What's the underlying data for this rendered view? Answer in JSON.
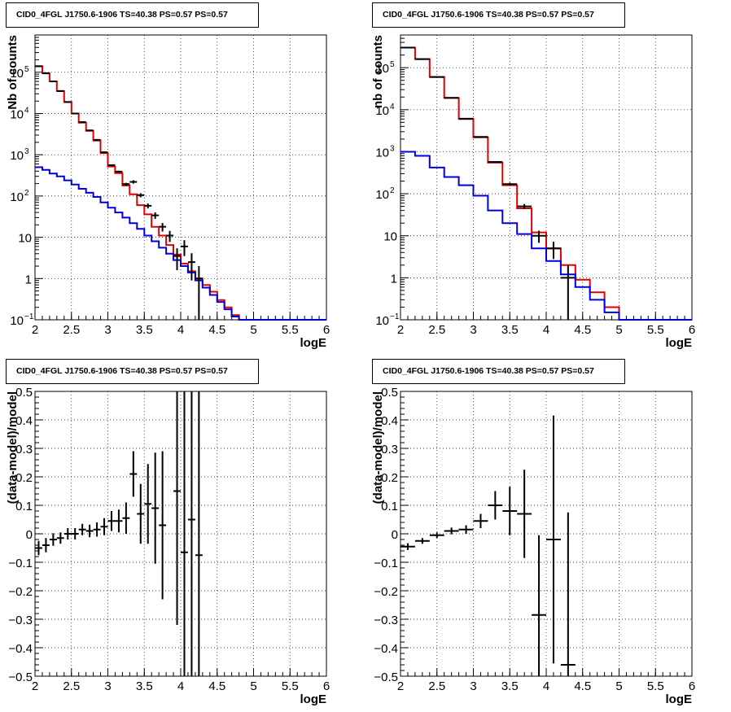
{
  "chart_data": [
    {
      "type": "line",
      "title": "CID0_4FGL J1750.6-1906 TS=40.38 PS=0.57 PS=0.57",
      "xlabel": "logE",
      "ylabel": "Nb of counts",
      "yscale": "log",
      "xlim": [
        2,
        6
      ],
      "ylim": [
        0.1,
        800000
      ],
      "grid": true,
      "xticks": [
        "2",
        "2.5",
        "3",
        "3.5",
        "4",
        "4.5",
        "5",
        "5.5",
        "6"
      ],
      "yticks": [
        {
          "v": 0.1,
          "label": "10",
          "sup": "−1"
        },
        {
          "v": 1,
          "label": "1",
          "sup": ""
        },
        {
          "v": 10,
          "label": "10",
          "sup": ""
        },
        {
          "v": 100,
          "label": "10",
          "sup": "2"
        },
        {
          "v": 1000,
          "label": "10",
          "sup": "3"
        },
        {
          "v": 10000,
          "label": "10",
          "sup": "4"
        },
        {
          "v": 100000,
          "label": "10",
          "sup": "5"
        }
      ],
      "bin_edges": [
        2.0,
        2.1,
        2.2,
        2.3,
        2.4,
        2.5,
        2.6,
        2.7,
        2.8,
        2.9,
        3.0,
        3.1,
        3.2,
        3.3,
        3.4,
        3.5,
        3.6,
        3.7,
        3.8,
        3.9,
        4.0,
        4.1,
        4.2,
        4.3,
        4.4,
        4.5,
        4.6,
        4.7,
        4.8,
        4.9,
        5.0,
        5.1,
        5.2,
        5.3,
        5.4,
        5.5,
        5.6,
        5.7,
        5.8,
        5.9,
        6.0
      ],
      "series": [
        {
          "color": "#e00000",
          "style": "step",
          "values": [
            140000,
            95000,
            60000,
            35000,
            19000,
            10000,
            6000,
            3800,
            2200,
            1100,
            520,
            360,
            180,
            110,
            60,
            36,
            18,
            11,
            6.5,
            3.8,
            2.3,
            1.5,
            1.0,
            0.7,
            0.48,
            0.3,
            0.2,
            0.13,
            0.1,
            0.1,
            0.1,
            0.1,
            0.1,
            0.1,
            0.1,
            0.1,
            0.1,
            0.1,
            0.1,
            0.1
          ]
        },
        {
          "color": "#0000dd",
          "style": "step",
          "values": [
            500,
            430,
            350,
            300,
            240,
            190,
            150,
            120,
            95,
            70,
            52,
            40,
            30,
            22,
            16,
            11,
            8,
            5.6,
            4,
            2.8,
            2,
            1.4,
            0.9,
            0.6,
            0.4,
            0.27,
            0.18,
            0.12,
            0.1,
            0.1,
            0.1,
            0.1,
            0.1,
            0.1,
            0.1,
            0.1,
            0.1,
            0.1,
            0.1,
            0.1
          ]
        },
        {
          "color": "#000000",
          "style": "errorbar",
          "points": [
            {
              "x": 2.05,
              "y": 140000,
              "err": 400
            },
            {
              "x": 2.15,
              "y": 94000,
              "err": 300
            },
            {
              "x": 2.25,
              "y": 60000,
              "err": 250
            },
            {
              "x": 2.35,
              "y": 35000,
              "err": 190
            },
            {
              "x": 2.45,
              "y": 19000,
              "err": 140
            },
            {
              "x": 2.55,
              "y": 10000,
              "err": 100
            },
            {
              "x": 2.65,
              "y": 6200,
              "err": 80
            },
            {
              "x": 2.75,
              "y": 3900,
              "err": 63
            },
            {
              "x": 2.85,
              "y": 2300,
              "err": 48
            },
            {
              "x": 2.95,
              "y": 1150,
              "err": 34
            },
            {
              "x": 3.05,
              "y": 560,
              "err": 24
            },
            {
              "x": 3.15,
              "y": 390,
              "err": 20
            },
            {
              "x": 3.25,
              "y": 195,
              "err": 14
            },
            {
              "x": 3.35,
              "y": 220,
              "err": 20
            },
            {
              "x": 3.45,
              "y": 105,
              "err": 12
            },
            {
              "x": 3.55,
              "y": 58,
              "err": 8
            },
            {
              "x": 3.65,
              "y": 34,
              "err": 6
            },
            {
              "x": 3.75,
              "y": 18,
              "err": 4.2
            },
            {
              "x": 3.85,
              "y": 11,
              "err": 3.3
            },
            {
              "x": 3.95,
              "y": 3.5,
              "err": 1.9
            },
            {
              "x": 4.05,
              "y": 6,
              "err": 2.5
            },
            {
              "x": 4.15,
              "y": 2.5,
              "err": 1.6
            },
            {
              "x": 4.25,
              "y": 1,
              "err": 1
            }
          ]
        }
      ]
    },
    {
      "type": "line",
      "title": "CID0_4FGL J1750.6-1906 TS=40.38 PS=0.57 PS=0.57",
      "xlabel": "logE",
      "ylabel": "nb of counts",
      "yscale": "log",
      "xlim": [
        2,
        6
      ],
      "ylim": [
        0.1,
        600000
      ],
      "grid": true,
      "xticks": [
        "2",
        "2.5",
        "3",
        "3.5",
        "4",
        "4.5",
        "5",
        "5.5",
        "6"
      ],
      "yticks": [
        {
          "v": 0.1,
          "label": "10",
          "sup": "−1"
        },
        {
          "v": 1,
          "label": "1",
          "sup": ""
        },
        {
          "v": 10,
          "label": "10",
          "sup": ""
        },
        {
          "v": 100,
          "label": "10",
          "sup": "2"
        },
        {
          "v": 1000,
          "label": "10",
          "sup": "3"
        },
        {
          "v": 10000,
          "label": "10",
          "sup": "4"
        },
        {
          "v": 100000,
          "label": "10",
          "sup": "5"
        }
      ],
      "bin_edges": [
        2.0,
        2.2,
        2.4,
        2.6,
        2.8,
        3.0,
        3.2,
        3.4,
        3.6,
        3.8,
        4.0,
        4.2,
        4.4,
        4.6,
        4.8,
        5.0,
        5.2,
        5.4,
        5.6,
        5.8,
        6.0
      ],
      "series": [
        {
          "color": "#e00000",
          "style": "step",
          "values": [
            300000,
            160000,
            60000,
            19000,
            6000,
            2200,
            550,
            160,
            45,
            12,
            5,
            2,
            0.9,
            0.45,
            0.2,
            0.1,
            0.1,
            0.1,
            0.1,
            0.1
          ]
        },
        {
          "color": "#0000dd",
          "style": "step",
          "values": [
            1000,
            800,
            420,
            250,
            160,
            90,
            40,
            20,
            11,
            5,
            2.5,
            1.2,
            0.6,
            0.3,
            0.15,
            0.1,
            0.1,
            0.1,
            0.1,
            0.1
          ]
        },
        {
          "color": "#000000",
          "style": "errorbar",
          "points": [
            {
              "x": 2.1,
              "y": 300000,
              "err": 550
            },
            {
              "x": 2.3,
              "y": 160000,
              "err": 400
            },
            {
              "x": 2.5,
              "y": 60000,
              "err": 245
            },
            {
              "x": 2.7,
              "y": 19200,
              "err": 140
            },
            {
              "x": 2.9,
              "y": 6100,
              "err": 78
            },
            {
              "x": 3.1,
              "y": 2250,
              "err": 47
            },
            {
              "x": 3.3,
              "y": 570,
              "err": 24
            },
            {
              "x": 3.5,
              "y": 170,
              "err": 13
            },
            {
              "x": 3.7,
              "y": 50,
              "err": 7
            },
            {
              "x": 3.9,
              "y": 10,
              "err": 3.2
            },
            {
              "x": 4.1,
              "y": 5,
              "err": 2.2
            },
            {
              "x": 4.3,
              "y": 1,
              "err": 0.95
            }
          ]
        }
      ]
    },
    {
      "type": "scatter",
      "title": "CID0_4FGL J1750.6-1906 TS=40.38 PS=0.57 PS=0.57",
      "xlabel": "logE",
      "ylabel": "(data-model)/model",
      "xlim": [
        2,
        6
      ],
      "ylim": [
        -0.5,
        0.5
      ],
      "grid": true,
      "xticks": [
        "2",
        "2.5",
        "3",
        "3.5",
        "4",
        "4.5",
        "5",
        "5.5",
        "6"
      ],
      "yticks": [
        "−0.5",
        "−0.4",
        "−0.3",
        "−0.2",
        "−0.1",
        "0",
        "0.1",
        "0.2",
        "0.3",
        "0.4",
        "0.5"
      ],
      "series": [
        {
          "color": "#000000",
          "style": "errorbar",
          "xhalf": 0.05,
          "points": [
            {
              "x": 2.05,
              "y": -0.05,
              "err": 0.025
            },
            {
              "x": 2.15,
              "y": -0.04,
              "err": 0.025
            },
            {
              "x": 2.25,
              "y": -0.02,
              "err": 0.022
            },
            {
              "x": 2.35,
              "y": -0.015,
              "err": 0.02
            },
            {
              "x": 2.45,
              "y": 0.0,
              "err": 0.02
            },
            {
              "x": 2.55,
              "y": 0.0,
              "err": 0.02
            },
            {
              "x": 2.65,
              "y": 0.015,
              "err": 0.02
            },
            {
              "x": 2.75,
              "y": 0.01,
              "err": 0.022
            },
            {
              "x": 2.85,
              "y": 0.015,
              "err": 0.025
            },
            {
              "x": 2.95,
              "y": 0.025,
              "err": 0.03
            },
            {
              "x": 3.05,
              "y": 0.045,
              "err": 0.035
            },
            {
              "x": 3.15,
              "y": 0.045,
              "err": 0.04
            },
            {
              "x": 3.25,
              "y": 0.055,
              "err": 0.055
            },
            {
              "x": 3.35,
              "y": 0.21,
              "err": 0.08
            },
            {
              "x": 3.45,
              "y": 0.07,
              "err": 0.105
            },
            {
              "x": 3.55,
              "y": 0.105,
              "err": 0.14
            },
            {
              "x": 3.65,
              "y": 0.09,
              "err": 0.195
            },
            {
              "x": 3.75,
              "y": 0.03,
              "err": 0.26
            },
            {
              "x": 3.95,
              "y": 0.15,
              "err": 0.47
            },
            {
              "x": 4.05,
              "y": -0.065,
              "err": 0.6
            },
            {
              "x": 4.15,
              "y": 0.05,
              "err": 0.7
            },
            {
              "x": 4.25,
              "y": -0.075,
              "err": 0.9
            }
          ]
        }
      ]
    },
    {
      "type": "scatter",
      "title": "CID0_4FGL J1750.6-1906 TS=40.38 PS=0.57 PS=0.57",
      "xlabel": "logE",
      "ylabel": "(data-model)/model",
      "xlim": [
        2,
        6
      ],
      "ylim": [
        -0.5,
        0.5
      ],
      "grid": true,
      "xticks": [
        "2",
        "2.5",
        "3",
        "3.5",
        "4",
        "4.5",
        "5",
        "5.5",
        "6"
      ],
      "yticks": [
        "−0.5",
        "−0.4",
        "−0.3",
        "−0.2",
        "−0.1",
        "0",
        "0.1",
        "0.2",
        "0.3",
        "0.4",
        "0.5"
      ],
      "series": [
        {
          "color": "#000000",
          "style": "errorbar",
          "xhalf": 0.1,
          "points": [
            {
              "x": 2.1,
              "y": -0.045,
              "err": 0.012
            },
            {
              "x": 2.3,
              "y": -0.025,
              "err": 0.01
            },
            {
              "x": 2.5,
              "y": -0.005,
              "err": 0.01
            },
            {
              "x": 2.7,
              "y": 0.01,
              "err": 0.012
            },
            {
              "x": 2.9,
              "y": 0.015,
              "err": 0.015
            },
            {
              "x": 3.1,
              "y": 0.045,
              "err": 0.025
            },
            {
              "x": 3.3,
              "y": 0.1,
              "err": 0.05
            },
            {
              "x": 3.5,
              "y": 0.08,
              "err": 0.085
            },
            {
              "x": 3.7,
              "y": 0.07,
              "err": 0.155
            },
            {
              "x": 3.9,
              "y": -0.285,
              "err": 0.28
            },
            {
              "x": 4.1,
              "y": -0.02,
              "err": 0.435
            },
            {
              "x": 4.3,
              "y": -0.46,
              "err": 0.535
            }
          ]
        }
      ]
    }
  ]
}
